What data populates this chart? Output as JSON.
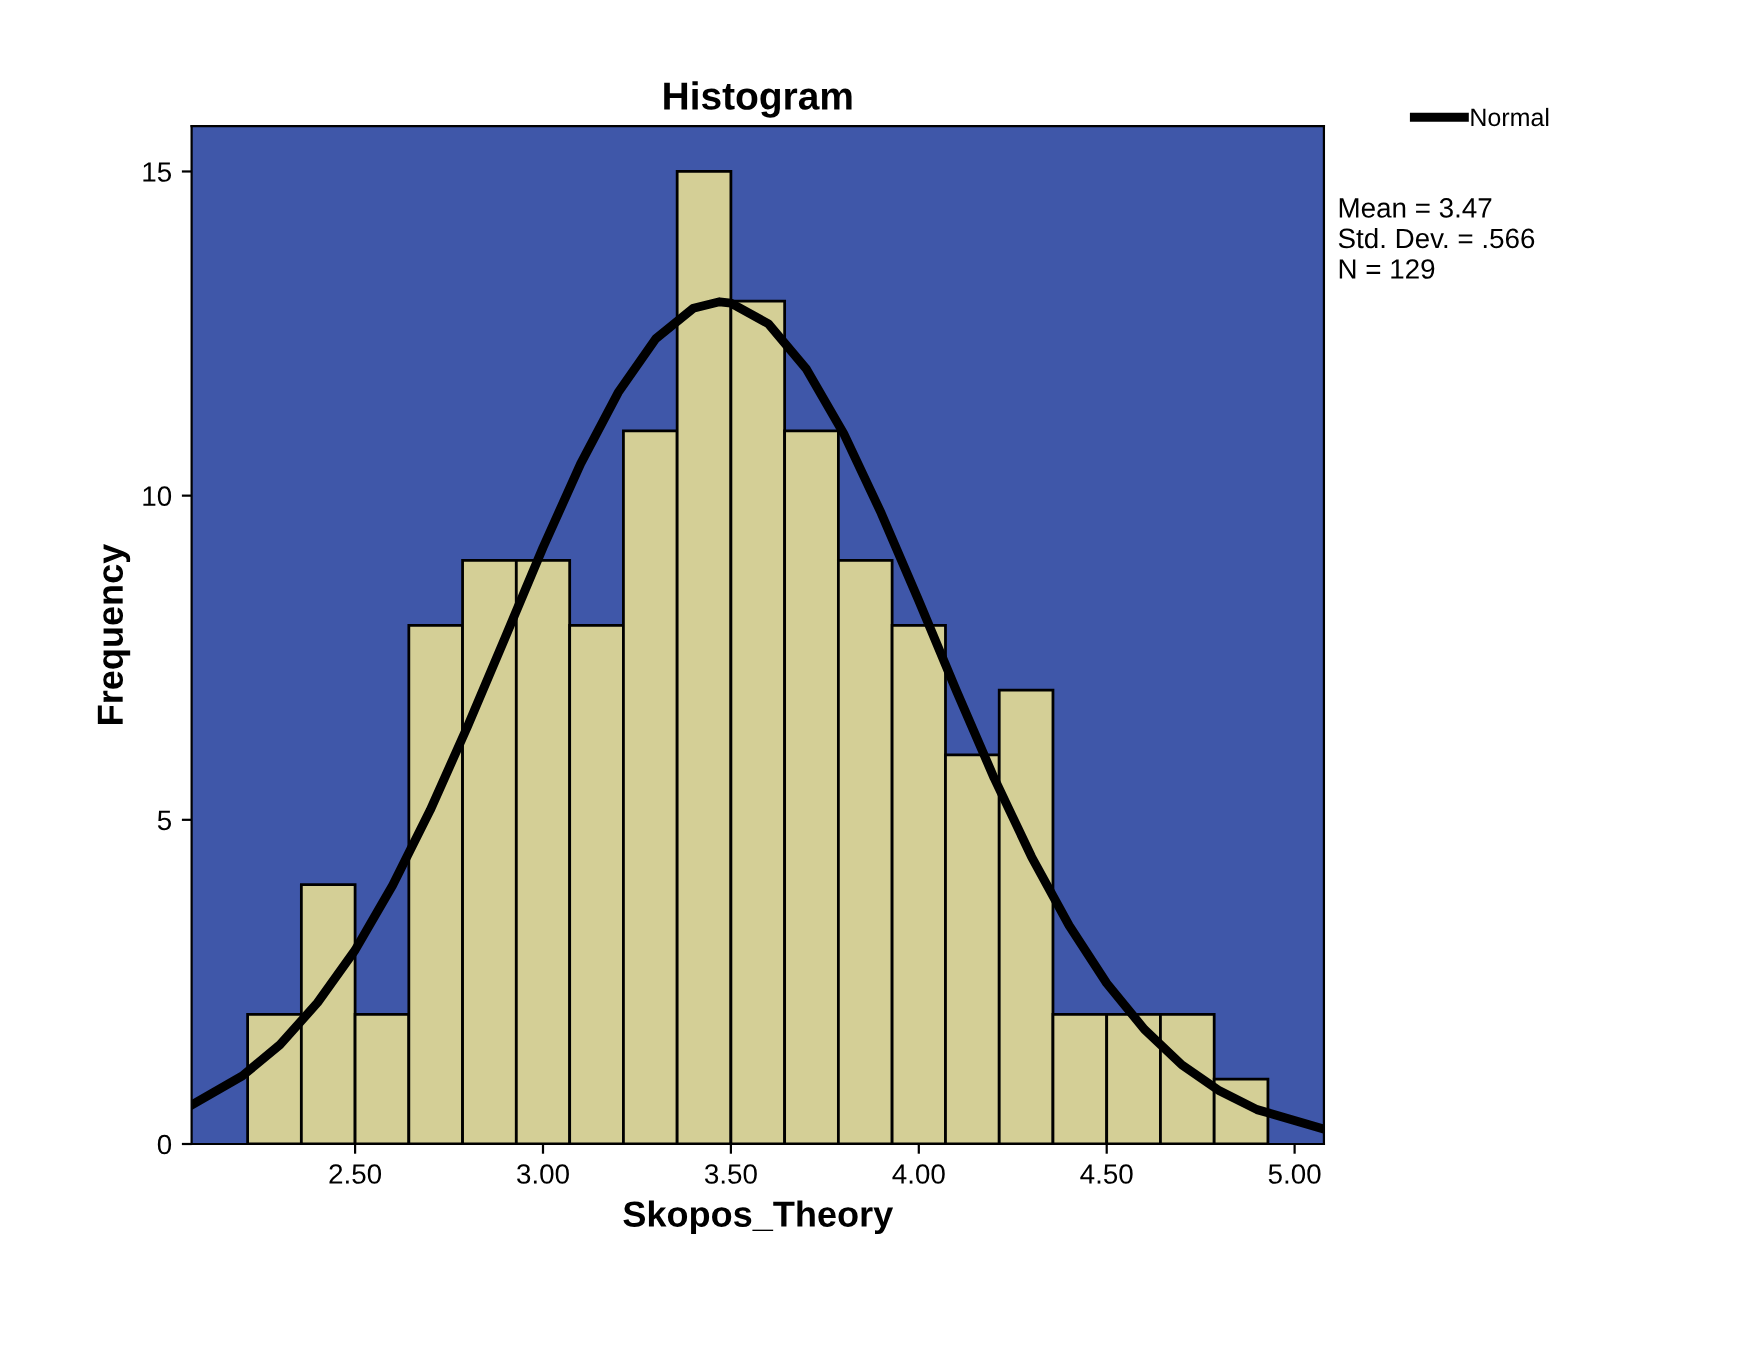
{
  "chart_data": {
    "type": "histogram",
    "title": "Histogram",
    "xlabel": "Skopos_Theory",
    "ylabel": "Frequency",
    "bins": [
      2.214,
      2.357,
      2.5,
      2.643,
      2.786,
      2.929,
      3.071,
      3.214,
      3.357,
      3.5,
      3.643,
      3.786,
      3.929,
      4.071,
      4.214,
      4.357,
      4.5,
      4.643,
      4.786,
      4.929
    ],
    "values": [
      2,
      4,
      2,
      8,
      9,
      9,
      8,
      11,
      15,
      13,
      11,
      9,
      8,
      6,
      7,
      2,
      2,
      2,
      1
    ],
    "color": "#d4cf96",
    "series": [
      {
        "type": "line",
        "name": "Normal",
        "color": "#000000",
        "x": [
          2.065,
          2.2,
          2.3,
          2.4,
          2.5,
          2.6,
          2.7,
          2.8,
          2.9,
          3.0,
          3.1,
          3.2,
          3.3,
          3.4,
          3.47,
          3.5,
          3.6,
          3.7,
          3.8,
          3.9,
          4.0,
          4.1,
          4.2,
          4.3,
          4.4,
          4.5,
          4.6,
          4.7,
          4.8,
          4.9,
          5.078
        ],
        "values": [
          0.6,
          1.05,
          1.53,
          2.18,
          2.99,
          3.99,
          5.15,
          6.45,
          7.82,
          9.2,
          10.49,
          11.59,
          12.42,
          12.89,
          12.99,
          12.97,
          12.65,
          11.96,
          10.96,
          9.73,
          8.38,
          6.99,
          5.65,
          4.43,
          3.37,
          2.48,
          1.77,
          1.22,
          0.82,
          0.53,
          0.23
        ]
      }
    ],
    "xlim": [
      2.065,
      5.078
    ],
    "xticks": [
      {
        "value": 2.5,
        "label": "2.50"
      },
      {
        "value": 3.0,
        "label": "3.00"
      },
      {
        "value": 3.5,
        "label": "3.50"
      },
      {
        "value": 4.0,
        "label": "4.00"
      },
      {
        "value": 4.5,
        "label": "4.50"
      },
      {
        "value": 5.0,
        "label": "5.00"
      }
    ],
    "ylim": [
      0,
      15.7
    ],
    "yticks": [
      0,
      5,
      10,
      15
    ],
    "annotations": [
      "Mean = 3.47",
      "Std. Dev. = .566",
      "N = 129"
    ],
    "legend": "top right",
    "grid": false
  }
}
